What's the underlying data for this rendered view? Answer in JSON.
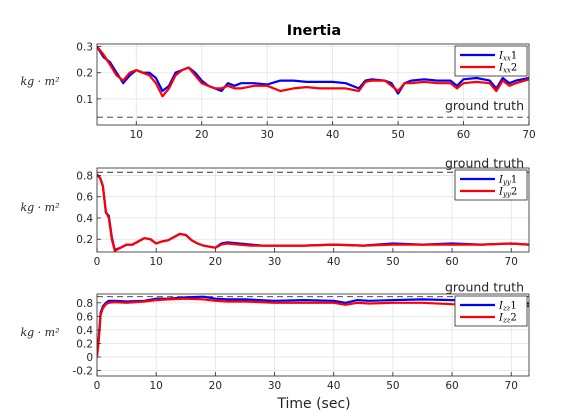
{
  "figure": {
    "title": "Inertia",
    "xlabel": "Time (sec)"
  },
  "chart_data": [
    {
      "type": "line",
      "title": "Inertia",
      "ylabel": "kg · m²",
      "xlim": [
        4,
        70
      ],
      "ylim": [
        0,
        0.31
      ],
      "xticks": [
        10,
        20,
        30,
        40,
        50,
        60,
        70
      ],
      "yticks": [
        0.1,
        0.2,
        0.3
      ],
      "ytick_labels": [
        "0.1",
        "0.2",
        "0.3"
      ],
      "grid": true,
      "legend": "top-right",
      "reference": {
        "label": "ground truth",
        "value": 0.03
      },
      "series": [
        {
          "name": "I_xx 1",
          "legend_main": "I",
          "legend_sub": "xx",
          "legend_tail": "1",
          "color": "#0000ff",
          "x": [
            4,
            5,
            6,
            7,
            8,
            9,
            10,
            11,
            12,
            13,
            14,
            15,
            16,
            17,
            18,
            19,
            20,
            21,
            22,
            23,
            24,
            25,
            26,
            28,
            30,
            32,
            34,
            36,
            38,
            40,
            42,
            44,
            45,
            46,
            48,
            49,
            50,
            51,
            52,
            54,
            56,
            58,
            59,
            60,
            62,
            64,
            65,
            66,
            67,
            68,
            70
          ],
          "y": [
            0.3,
            0.26,
            0.24,
            0.2,
            0.16,
            0.19,
            0.21,
            0.2,
            0.2,
            0.18,
            0.13,
            0.15,
            0.2,
            0.21,
            0.22,
            0.2,
            0.17,
            0.15,
            0.14,
            0.13,
            0.16,
            0.15,
            0.16,
            0.16,
            0.155,
            0.17,
            0.17,
            0.165,
            0.165,
            0.165,
            0.16,
            0.14,
            0.17,
            0.175,
            0.17,
            0.16,
            0.12,
            0.16,
            0.17,
            0.175,
            0.17,
            0.17,
            0.15,
            0.175,
            0.18,
            0.17,
            0.14,
            0.18,
            0.16,
            0.17,
            0.18
          ]
        },
        {
          "name": "I_xx 2",
          "legend_main": "I",
          "legend_sub": "xx",
          "legend_tail": "2",
          "color": "#ff0000",
          "x": [
            4,
            5,
            6,
            7,
            8,
            9,
            10,
            11,
            12,
            13,
            14,
            15,
            16,
            17,
            18,
            19,
            20,
            21,
            22,
            23,
            24,
            25,
            26,
            28,
            30,
            32,
            34,
            36,
            38,
            40,
            42,
            44,
            45,
            46,
            48,
            49,
            50,
            51,
            52,
            54,
            56,
            58,
            59,
            60,
            62,
            64,
            65,
            66,
            67,
            68,
            70
          ],
          "y": [
            0.3,
            0.27,
            0.23,
            0.19,
            0.17,
            0.2,
            0.21,
            0.2,
            0.19,
            0.16,
            0.11,
            0.14,
            0.19,
            0.21,
            0.22,
            0.19,
            0.16,
            0.15,
            0.14,
            0.14,
            0.15,
            0.14,
            0.14,
            0.15,
            0.15,
            0.13,
            0.14,
            0.145,
            0.14,
            0.14,
            0.14,
            0.13,
            0.165,
            0.17,
            0.17,
            0.15,
            0.13,
            0.16,
            0.16,
            0.165,
            0.16,
            0.16,
            0.14,
            0.16,
            0.165,
            0.16,
            0.13,
            0.17,
            0.15,
            0.16,
            0.175
          ]
        }
      ]
    },
    {
      "type": "line",
      "ylabel": "kg · m²",
      "xlim": [
        0,
        73
      ],
      "ylim": [
        0.08,
        0.87
      ],
      "xticks": [
        0,
        10,
        20,
        30,
        40,
        50,
        60,
        70
      ],
      "yticks": [
        0.2,
        0.4,
        0.6,
        0.8
      ],
      "ytick_labels": [
        "0.2",
        "0.4",
        "0.6",
        "0.8"
      ],
      "grid": true,
      "legend": "top-right",
      "reference": {
        "label": "ground truth",
        "value": 0.83
      },
      "series": [
        {
          "name": "I_yy 1",
          "legend_main": "I",
          "legend_sub": "yy",
          "legend_tail": "1",
          "color": "#0000ff",
          "x": [
            0,
            0.5,
            1,
            1.5,
            2,
            2.5,
            3,
            4,
            5,
            6,
            7,
            8,
            9,
            10,
            11,
            12,
            13,
            14,
            15,
            16,
            17,
            18,
            19,
            20,
            21,
            22,
            24,
            26,
            28,
            30,
            35,
            40,
            45,
            50,
            55,
            60,
            65,
            70,
            73
          ],
          "y": [
            0.8,
            0.78,
            0.7,
            0.45,
            0.42,
            0.22,
            0.1,
            0.12,
            0.15,
            0.15,
            0.18,
            0.21,
            0.2,
            0.16,
            0.18,
            0.19,
            0.22,
            0.25,
            0.24,
            0.19,
            0.16,
            0.14,
            0.13,
            0.12,
            0.16,
            0.17,
            0.16,
            0.15,
            0.14,
            0.14,
            0.14,
            0.15,
            0.14,
            0.16,
            0.15,
            0.16,
            0.15,
            0.16,
            0.15
          ]
        },
        {
          "name": "I_yy 2",
          "legend_main": "I",
          "legend_sub": "yy",
          "legend_tail": "2",
          "color": "#ff0000",
          "x": [
            0,
            0.5,
            1,
            1.5,
            2,
            2.5,
            3,
            4,
            5,
            6,
            7,
            8,
            9,
            10,
            11,
            12,
            13,
            14,
            15,
            16,
            17,
            18,
            19,
            20,
            21,
            22,
            24,
            26,
            28,
            30,
            35,
            40,
            45,
            50,
            55,
            60,
            65,
            70,
            73
          ],
          "y": [
            0.81,
            0.78,
            0.7,
            0.46,
            0.4,
            0.2,
            0.09,
            0.12,
            0.15,
            0.15,
            0.18,
            0.21,
            0.2,
            0.16,
            0.18,
            0.19,
            0.22,
            0.25,
            0.24,
            0.19,
            0.16,
            0.14,
            0.13,
            0.12,
            0.15,
            0.16,
            0.15,
            0.14,
            0.14,
            0.14,
            0.14,
            0.15,
            0.14,
            0.15,
            0.15,
            0.15,
            0.15,
            0.16,
            0.15
          ]
        }
      ]
    },
    {
      "type": "line",
      "ylabel": "kg · m²",
      "xlim": [
        0,
        73
      ],
      "ylim": [
        -0.28,
        0.93
      ],
      "xticks": [
        0,
        10,
        20,
        30,
        40,
        50,
        60,
        70
      ],
      "yticks": [
        -0.2,
        0,
        0.2,
        0.4,
        0.6,
        0.8
      ],
      "ytick_labels": [
        "-0.2",
        "0",
        "0.2",
        "0.4",
        "0.6",
        "0.8"
      ],
      "grid": true,
      "legend": "top-right",
      "reference": {
        "label": "ground truth",
        "value": 0.89
      },
      "series": [
        {
          "name": "I_zz 1",
          "legend_main": "I",
          "legend_sub": "zz",
          "legend_tail": "1",
          "color": "#0000ff",
          "x": [
            0,
            0.3,
            0.6,
            1,
            1.5,
            2,
            3,
            5,
            8,
            10,
            12,
            15,
            18,
            20,
            22,
            25,
            30,
            35,
            40,
            42,
            44,
            46,
            50,
            55,
            60,
            65,
            70,
            73
          ],
          "y": [
            0.05,
            0.3,
            0.65,
            0.75,
            0.8,
            0.83,
            0.83,
            0.82,
            0.83,
            0.86,
            0.86,
            0.88,
            0.89,
            0.86,
            0.85,
            0.85,
            0.83,
            0.84,
            0.83,
            0.8,
            0.84,
            0.83,
            0.84,
            0.85,
            0.84,
            0.83,
            0.82,
            0.79
          ]
        },
        {
          "name": "I_zz 2",
          "legend_main": "I",
          "legend_sub": "zz",
          "legend_tail": "2",
          "color": "#ff0000",
          "x": [
            0,
            0.3,
            0.6,
            1,
            1.5,
            2,
            3,
            5,
            8,
            10,
            12,
            15,
            18,
            20,
            22,
            25,
            30,
            35,
            40,
            42,
            44,
            46,
            50,
            55,
            60,
            65,
            70,
            73
          ],
          "y": [
            0.0,
            0.25,
            0.62,
            0.72,
            0.78,
            0.8,
            0.81,
            0.8,
            0.82,
            0.84,
            0.85,
            0.86,
            0.85,
            0.83,
            0.82,
            0.82,
            0.8,
            0.8,
            0.8,
            0.77,
            0.8,
            0.79,
            0.8,
            0.8,
            0.78,
            0.77,
            0.77,
            0.75
          ]
        }
      ]
    }
  ]
}
